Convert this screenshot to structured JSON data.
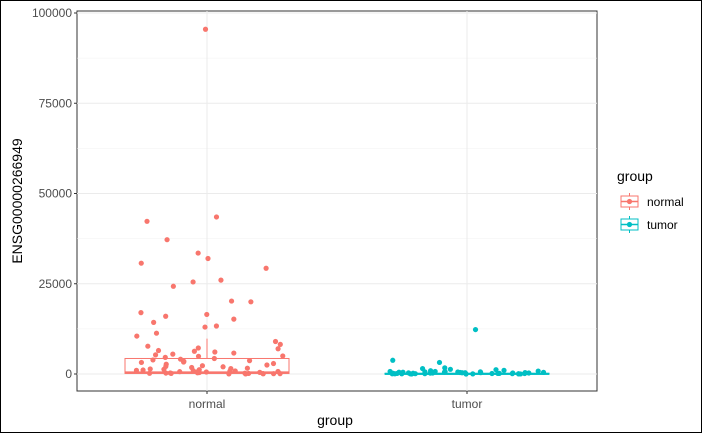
{
  "chart_data": {
    "type": "boxplot",
    "title": "",
    "xlabel": "group",
    "ylabel": "ENSG00000266949",
    "ylim": [
      -2500,
      100000
    ],
    "yticks": [
      0,
      25000,
      50000,
      75000,
      100000
    ],
    "ytick_labels": [
      "0",
      "25000",
      "50000",
      "75000",
      "100000"
    ],
    "grid": true,
    "legend": {
      "title": "group",
      "placement": "right",
      "entries": [
        "normal",
        "tumor"
      ]
    },
    "categories": [
      "normal",
      "tumor"
    ],
    "series": [
      {
        "name": "normal",
        "color": "#F8766D",
        "box": {
          "q1": 150,
          "median": 450,
          "q3": 4300,
          "whisker_low": 0,
          "whisker_high": 9800
        },
        "points": [
          95500,
          43500,
          42300,
          37200,
          33500,
          32000,
          30700,
          29300,
          26000,
          25500,
          24300,
          20000,
          20200,
          17000,
          16500,
          16000,
          15200,
          14300,
          13300,
          13000,
          11300,
          10500,
          9000,
          8200,
          7700,
          7200,
          7000,
          6500,
          6300,
          6100,
          5800,
          5500,
          5300,
          5000,
          4900,
          4600,
          4300,
          4100,
          3900,
          3700,
          3500,
          3300,
          3200,
          2900,
          2700,
          2500,
          2300,
          2100,
          2000,
          1800,
          1600,
          1500,
          1400,
          1300,
          1200,
          1100,
          1000,
          900,
          850,
          800,
          700,
          650,
          600,
          550,
          500,
          450,
          400,
          350,
          300,
          250,
          220,
          200,
          180,
          150,
          120,
          100,
          80,
          60,
          40,
          20
        ]
      },
      {
        "name": "tumor",
        "color": "#00BFC4",
        "box": {
          "q1": 10,
          "median": 50,
          "q3": 200,
          "whisker_low": 0,
          "whisker_high": 500
        },
        "points": [
          12300,
          3800,
          3200,
          1700,
          1500,
          1300,
          1200,
          1000,
          900,
          800,
          700,
          650,
          600,
          550,
          500,
          450,
          420,
          400,
          380,
          350,
          320,
          300,
          280,
          250,
          220,
          200,
          180,
          160,
          140,
          120,
          100,
          90,
          80,
          70,
          60,
          50,
          40,
          30,
          20,
          10,
          5,
          150,
          260,
          340,
          480,
          520,
          610,
          710,
          95,
          45
        ]
      }
    ]
  }
}
